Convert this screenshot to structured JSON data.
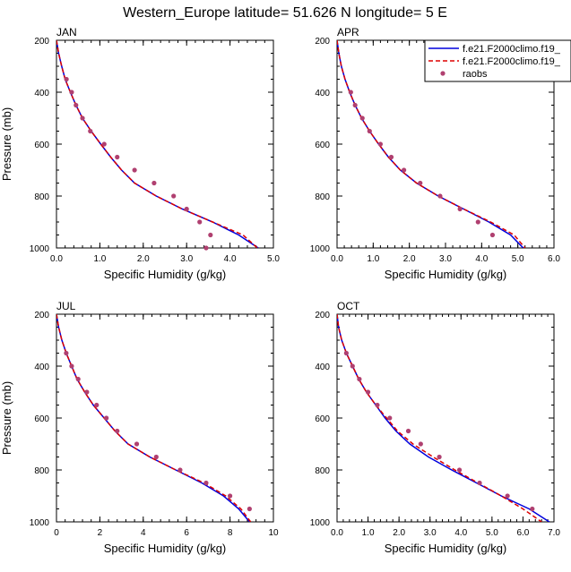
{
  "title": "Western_Europe  latitude= 51.626 N longitude= 5 E",
  "chart_data": [
    {
      "type": "line",
      "panel_label": "JAN",
      "xlabel": "Specific Humidity (g/kg)",
      "ylabel": "Pressure (mb)",
      "xlim": [
        0,
        5
      ],
      "xticks": [
        0.0,
        1.0,
        2.0,
        3.0,
        4.0,
        5.0
      ],
      "xtick_labels": [
        "0.0",
        "1.0",
        "2.0",
        "3.0",
        "4.0",
        "5.0"
      ],
      "ylim": [
        200,
        1000
      ],
      "y_inverted": true,
      "yticks": [
        200,
        400,
        600,
        800,
        1000
      ],
      "ytick_labels": [
        "200",
        "400",
        "600",
        "800",
        "1000"
      ],
      "legend": null,
      "series": [
        {
          "key": "model1",
          "color": "#0000dd",
          "dash": "solid",
          "points": [
            [
              0.0,
              200
            ],
            [
              0.05,
              250
            ],
            [
              0.12,
              300
            ],
            [
              0.2,
              350
            ],
            [
              0.32,
              400
            ],
            [
              0.45,
              450
            ],
            [
              0.6,
              500
            ],
            [
              0.8,
              550
            ],
            [
              1.02,
              600
            ],
            [
              1.25,
              650
            ],
            [
              1.5,
              700
            ],
            [
              1.8,
              750
            ],
            [
              2.3,
              800
            ],
            [
              2.9,
              850
            ],
            [
              3.6,
              900
            ],
            [
              4.2,
              950
            ],
            [
              4.65,
              1000
            ]
          ]
        },
        {
          "key": "model2",
          "color": "#dd0000",
          "dash": "dashed",
          "points": [
            [
              0.0,
              200
            ],
            [
              0.05,
              250
            ],
            [
              0.12,
              300
            ],
            [
              0.2,
              350
            ],
            [
              0.32,
              400
            ],
            [
              0.45,
              450
            ],
            [
              0.6,
              500
            ],
            [
              0.8,
              550
            ],
            [
              1.02,
              600
            ],
            [
              1.25,
              650
            ],
            [
              1.5,
              700
            ],
            [
              1.8,
              750
            ],
            [
              2.3,
              800
            ],
            [
              2.9,
              850
            ],
            [
              3.6,
              900
            ],
            [
              4.3,
              950
            ],
            [
              4.63,
              1000
            ]
          ]
        },
        {
          "key": "raobs",
          "color": "#b04070",
          "marker": "dot",
          "points": [
            [
              0.23,
              350
            ],
            [
              0.35,
              400
            ],
            [
              0.45,
              450
            ],
            [
              0.6,
              500
            ],
            [
              0.78,
              550
            ],
            [
              1.1,
              600
            ],
            [
              1.4,
              650
            ],
            [
              1.8,
              700
            ],
            [
              2.25,
              750
            ],
            [
              2.7,
              800
            ],
            [
              3.0,
              850
            ],
            [
              3.3,
              900
            ],
            [
              3.55,
              950
            ],
            [
              3.45,
              1000
            ]
          ]
        }
      ]
    },
    {
      "type": "line",
      "panel_label": "APR",
      "xlabel": "Specific Humidity (g/kg)",
      "ylabel": "",
      "xlim": [
        0,
        6
      ],
      "xticks": [
        0.0,
        1.0,
        2.0,
        3.0,
        4.0,
        5.0,
        6.0
      ],
      "xtick_labels": [
        "0.0",
        "1.0",
        "2.0",
        "3.0",
        "4.0",
        "5.0",
        "6.0"
      ],
      "ylim": [
        200,
        1000
      ],
      "y_inverted": true,
      "yticks": [
        200,
        400,
        600,
        800,
        1000
      ],
      "ytick_labels": [
        "200",
        "400",
        "600",
        "800",
        "1000"
      ],
      "legend": {
        "position": "top-right",
        "entries": [
          {
            "label": "f.e21.F2000climo.f19_",
            "color": "#0000dd",
            "style": "solid"
          },
          {
            "label": "f.e21.F2000climo.f19_",
            "color": "#dd0000",
            "style": "dashed"
          },
          {
            "label": "raobs",
            "color": "#b04070",
            "style": "dot"
          }
        ]
      },
      "series": [
        {
          "key": "model1",
          "color": "#0000dd",
          "dash": "solid",
          "points": [
            [
              0.0,
              200
            ],
            [
              0.05,
              250
            ],
            [
              0.12,
              300
            ],
            [
              0.22,
              350
            ],
            [
              0.35,
              400
            ],
            [
              0.5,
              450
            ],
            [
              0.68,
              500
            ],
            [
              0.9,
              550
            ],
            [
              1.15,
              600
            ],
            [
              1.42,
              650
            ],
            [
              1.75,
              700
            ],
            [
              2.2,
              750
            ],
            [
              2.8,
              800
            ],
            [
              3.5,
              850
            ],
            [
              4.2,
              900
            ],
            [
              4.8,
              950
            ],
            [
              5.15,
              1000
            ]
          ]
        },
        {
          "key": "model2",
          "color": "#dd0000",
          "dash": "dashed",
          "points": [
            [
              0.0,
              200
            ],
            [
              0.05,
              250
            ],
            [
              0.12,
              300
            ],
            [
              0.22,
              350
            ],
            [
              0.35,
              400
            ],
            [
              0.5,
              450
            ],
            [
              0.68,
              500
            ],
            [
              0.9,
              550
            ],
            [
              1.15,
              600
            ],
            [
              1.42,
              650
            ],
            [
              1.75,
              700
            ],
            [
              2.2,
              750
            ],
            [
              2.8,
              800
            ],
            [
              3.5,
              850
            ],
            [
              4.25,
              900
            ],
            [
              4.9,
              950
            ],
            [
              5.2,
              1000
            ]
          ]
        },
        {
          "key": "raobs",
          "color": "#b04070",
          "marker": "dot",
          "points": [
            [
              0.38,
              400
            ],
            [
              0.5,
              450
            ],
            [
              0.7,
              500
            ],
            [
              0.9,
              550
            ],
            [
              1.2,
              600
            ],
            [
              1.5,
              650
            ],
            [
              1.85,
              700
            ],
            [
              2.3,
              750
            ],
            [
              2.85,
              800
            ],
            [
              3.4,
              850
            ],
            [
              3.9,
              900
            ],
            [
              4.3,
              950
            ]
          ]
        }
      ]
    },
    {
      "type": "line",
      "panel_label": "JUL",
      "xlabel": "Specific Humidity (g/kg)",
      "ylabel": "Pressure (mb)",
      "xlim": [
        0,
        10
      ],
      "xticks": [
        0,
        2,
        4,
        6,
        8,
        10
      ],
      "xtick_labels": [
        "0",
        "2",
        "4",
        "6",
        "8",
        "10"
      ],
      "ylim": [
        200,
        1000
      ],
      "y_inverted": true,
      "yticks": [
        200,
        400,
        600,
        800,
        1000
      ],
      "ytick_labels": [
        "200",
        "400",
        "600",
        "800",
        "1000"
      ],
      "legend": null,
      "series": [
        {
          "key": "model1",
          "color": "#0000dd",
          "dash": "solid",
          "points": [
            [
              0.0,
              200
            ],
            [
              0.1,
              250
            ],
            [
              0.25,
              300
            ],
            [
              0.45,
              350
            ],
            [
              0.7,
              400
            ],
            [
              0.95,
              450
            ],
            [
              1.3,
              500
            ],
            [
              1.7,
              550
            ],
            [
              2.2,
              600
            ],
            [
              2.7,
              650
            ],
            [
              3.3,
              700
            ],
            [
              4.3,
              750
            ],
            [
              5.5,
              800
            ],
            [
              6.7,
              850
            ],
            [
              7.7,
              900
            ],
            [
              8.4,
              950
            ],
            [
              8.9,
              1000
            ]
          ]
        },
        {
          "key": "model2",
          "color": "#dd0000",
          "dash": "dashed",
          "points": [
            [
              0.0,
              200
            ],
            [
              0.1,
              250
            ],
            [
              0.25,
              300
            ],
            [
              0.45,
              350
            ],
            [
              0.7,
              400
            ],
            [
              0.95,
              450
            ],
            [
              1.3,
              500
            ],
            [
              1.7,
              550
            ],
            [
              2.2,
              600
            ],
            [
              2.7,
              650
            ],
            [
              3.3,
              700
            ],
            [
              4.3,
              750
            ],
            [
              5.5,
              800
            ],
            [
              6.8,
              850
            ],
            [
              7.8,
              900
            ],
            [
              8.5,
              950
            ],
            [
              8.95,
              1000
            ]
          ]
        },
        {
          "key": "raobs",
          "color": "#b04070",
          "marker": "dot",
          "points": [
            [
              0.45,
              350
            ],
            [
              0.7,
              400
            ],
            [
              1.0,
              450
            ],
            [
              1.4,
              500
            ],
            [
              1.85,
              550
            ],
            [
              2.3,
              600
            ],
            [
              2.8,
              650
            ],
            [
              3.7,
              700
            ],
            [
              4.6,
              750
            ],
            [
              5.7,
              800
            ],
            [
              6.9,
              850
            ],
            [
              8.0,
              900
            ],
            [
              8.9,
              950
            ]
          ]
        }
      ]
    },
    {
      "type": "line",
      "panel_label": "OCT",
      "xlabel": "Specific Humidity (g/kg)",
      "ylabel": "",
      "xlim": [
        0,
        7
      ],
      "xticks": [
        0.0,
        1.0,
        2.0,
        3.0,
        4.0,
        5.0,
        6.0,
        7.0
      ],
      "xtick_labels": [
        "0.0",
        "1.0",
        "2.0",
        "3.0",
        "4.0",
        "5.0",
        "6.0",
        "7.0"
      ],
      "ylim": [
        200,
        1000
      ],
      "y_inverted": true,
      "yticks": [
        200,
        400,
        600,
        800,
        1000
      ],
      "ytick_labels": [
        "200",
        "400",
        "600",
        "800",
        "1000"
      ],
      "legend": null,
      "series": [
        {
          "key": "model1",
          "color": "#0000dd",
          "dash": "solid",
          "points": [
            [
              0.0,
              200
            ],
            [
              0.05,
              250
            ],
            [
              0.15,
              300
            ],
            [
              0.3,
              350
            ],
            [
              0.5,
              400
            ],
            [
              0.7,
              450
            ],
            [
              0.95,
              500
            ],
            [
              1.25,
              550
            ],
            [
              1.55,
              600
            ],
            [
              1.9,
              650
            ],
            [
              2.35,
              700
            ],
            [
              2.95,
              750
            ],
            [
              3.7,
              800
            ],
            [
              4.5,
              850
            ],
            [
              5.3,
              900
            ],
            [
              6.2,
              950
            ],
            [
              6.85,
              1000
            ]
          ]
        },
        {
          "key": "model2",
          "color": "#dd0000",
          "dash": "dashed",
          "points": [
            [
              0.0,
              200
            ],
            [
              0.05,
              250
            ],
            [
              0.15,
              300
            ],
            [
              0.3,
              350
            ],
            [
              0.5,
              400
            ],
            [
              0.7,
              450
            ],
            [
              0.95,
              500
            ],
            [
              1.25,
              550
            ],
            [
              1.6,
              600
            ],
            [
              1.95,
              650
            ],
            [
              2.45,
              700
            ],
            [
              3.1,
              750
            ],
            [
              3.8,
              800
            ],
            [
              4.55,
              850
            ],
            [
              5.3,
              900
            ],
            [
              6.0,
              950
            ],
            [
              6.6,
              1000
            ]
          ]
        },
        {
          "key": "raobs",
          "color": "#b04070",
          "marker": "dot",
          "points": [
            [
              0.3,
              350
            ],
            [
              0.5,
              400
            ],
            [
              0.72,
              450
            ],
            [
              1.0,
              500
            ],
            [
              1.3,
              550
            ],
            [
              1.7,
              600
            ],
            [
              2.3,
              650
            ],
            [
              2.7,
              700
            ],
            [
              3.3,
              750
            ],
            [
              3.95,
              800
            ],
            [
              4.6,
              850
            ],
            [
              5.5,
              900
            ],
            [
              6.3,
              950
            ]
          ]
        }
      ]
    }
  ]
}
